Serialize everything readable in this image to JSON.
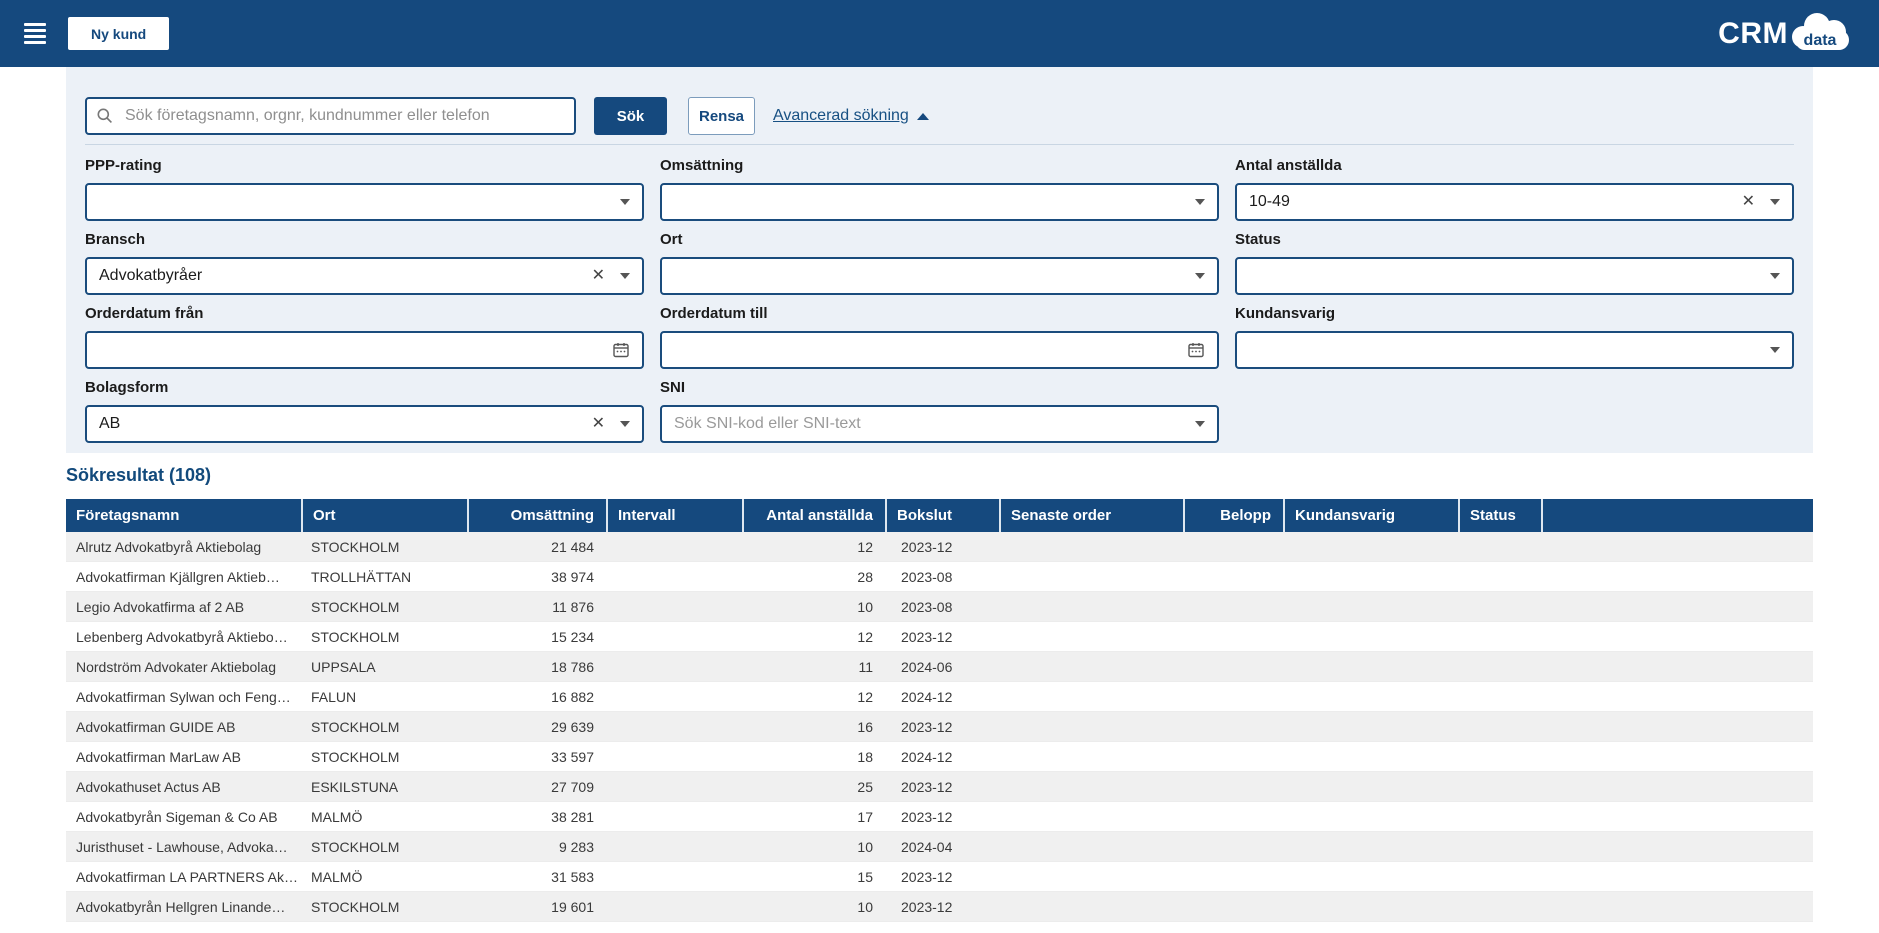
{
  "header": {
    "new_customer_button": "Ny kund",
    "logo": {
      "crm": "CRM",
      "data": "data"
    }
  },
  "search_bar": {
    "placeholder": "Sök företagsnamn, orgnr, kundnummer eller telefon",
    "value": "",
    "search_button": "Sök",
    "clear_button": "Rensa",
    "advanced_link": "Avancerad sökning"
  },
  "filters": {
    "ppp_rating": {
      "label": "PPP-rating",
      "value": ""
    },
    "omsattning": {
      "label": "Omsättning",
      "value": ""
    },
    "antal_anstallda": {
      "label": "Antal anställda",
      "value": "10-49"
    },
    "bransch": {
      "label": "Bransch",
      "value": "Advokatbyråer"
    },
    "ort": {
      "label": "Ort",
      "value": ""
    },
    "status": {
      "label": "Status",
      "value": ""
    },
    "orderdatum_fran": {
      "label": "Orderdatum från",
      "value": ""
    },
    "orderdatum_till": {
      "label": "Orderdatum till",
      "value": ""
    },
    "kundansvarig": {
      "label": "Kundansvarig",
      "value": ""
    },
    "bolagsform": {
      "label": "Bolagsform",
      "value": "AB"
    },
    "sni": {
      "label": "SNI",
      "placeholder": "Sök SNI-kod eller SNI-text"
    }
  },
  "results": {
    "heading": "Sökresultat (108)",
    "columns": [
      "Företagsnamn",
      "Ort",
      "Omsättning",
      "Intervall",
      "Antal anställda",
      "Bokslut",
      "Senaste order",
      "Belopp",
      "Kundansvarig",
      "Status",
      ""
    ],
    "numeric_columns": [
      2,
      4,
      7
    ],
    "rows": [
      [
        "Alrutz Advokatbyrå Aktiebolag",
        "STOCKHOLM",
        "21 484",
        "",
        "12",
        "2023-12",
        "",
        "",
        "",
        "",
        ""
      ],
      [
        "Advokatfirman Kjällgren Aktieb…",
        "TROLLHÄTTAN",
        "38 974",
        "",
        "28",
        "2023-08",
        "",
        "",
        "",
        "",
        ""
      ],
      [
        "Legio Advokatfirma af 2 AB",
        "STOCKHOLM",
        "11 876",
        "",
        "10",
        "2023-08",
        "",
        "",
        "",
        "",
        ""
      ],
      [
        "Lebenberg Advokatbyrå Aktiebo…",
        "STOCKHOLM",
        "15 234",
        "",
        "12",
        "2023-12",
        "",
        "",
        "",
        "",
        ""
      ],
      [
        "Nordström Advokater Aktiebolag",
        "UPPSALA",
        "18 786",
        "",
        "11",
        "2024-06",
        "",
        "",
        "",
        "",
        ""
      ],
      [
        "Advokatfirman Sylwan och Feng…",
        "FALUN",
        "16 882",
        "",
        "12",
        "2024-12",
        "",
        "",
        "",
        "",
        ""
      ],
      [
        "Advokatfirman GUIDE AB",
        "STOCKHOLM",
        "29 639",
        "",
        "16",
        "2023-12",
        "",
        "",
        "",
        "",
        ""
      ],
      [
        "Advokatfirman MarLaw AB",
        "STOCKHOLM",
        "33 597",
        "",
        "18",
        "2024-12",
        "",
        "",
        "",
        "",
        ""
      ],
      [
        "Advokathuset Actus AB",
        "ESKILSTUNA",
        "27 709",
        "",
        "25",
        "2023-12",
        "",
        "",
        "",
        "",
        ""
      ],
      [
        "Advokatbyrån Sigeman & Co AB",
        "MALMÖ",
        "38 281",
        "",
        "17",
        "2023-12",
        "",
        "",
        "",
        "",
        ""
      ],
      [
        "Juristhuset - Lawhouse, Advoka…",
        "STOCKHOLM",
        "9 283",
        "",
        "10",
        "2024-04",
        "",
        "",
        "",
        "",
        ""
      ],
      [
        "Advokatfirman LA PARTNERS Ak…",
        "MALMÖ",
        "31 583",
        "",
        "15",
        "2023-12",
        "",
        "",
        "",
        "",
        ""
      ],
      [
        "Advokatbyrån Hellgren Linande…",
        "STOCKHOLM",
        "19 601",
        "",
        "10",
        "2023-12",
        "",
        "",
        "",
        "",
        ""
      ]
    ]
  },
  "colors": {
    "navy": "#15497E",
    "panel_bg": "#ECF1F7",
    "row_alt": "#F0F0F0",
    "link": "#175083"
  }
}
